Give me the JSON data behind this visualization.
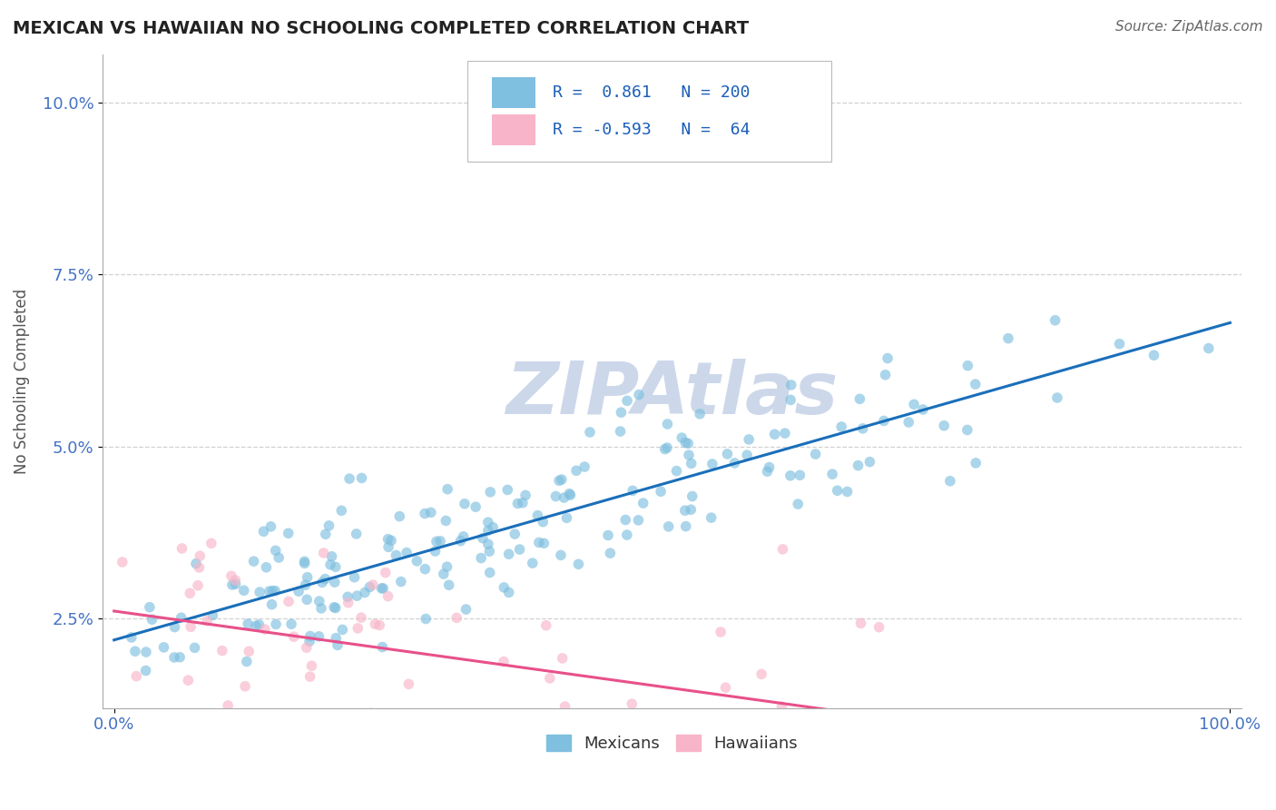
{
  "title": "MEXICAN VS HAWAIIAN NO SCHOOLING COMPLETED CORRELATION CHART",
  "source_text": "Source: ZipAtlas.com",
  "ylabel": "No Schooling Completed",
  "watermark": "ZIPAtlas",
  "xlim": [
    -0.01,
    1.01
  ],
  "ylim": [
    0.012,
    0.107
  ],
  "yticks": [
    0.025,
    0.05,
    0.075,
    0.1
  ],
  "ytick_labels": [
    "2.5%",
    "5.0%",
    "7.5%",
    "10.0%"
  ],
  "mexican_R": 0.861,
  "mexican_N": 200,
  "hawaiian_R": -0.593,
  "hawaiian_N": 64,
  "mexican_color": "#7fbfdf",
  "hawaiian_color": "#f8b4c8",
  "mexican_line_color": "#1a6fba",
  "hawaiian_line_color": "#e8508a",
  "title_color": "#222222",
  "source_color": "#666666",
  "legend_text_color": "#1a5eb8",
  "background_color": "#ffffff",
  "grid_color": "#cccccc",
  "watermark_color": "#ccd8ea",
  "mexican_seed": 42,
  "hawaiian_seed": 123
}
